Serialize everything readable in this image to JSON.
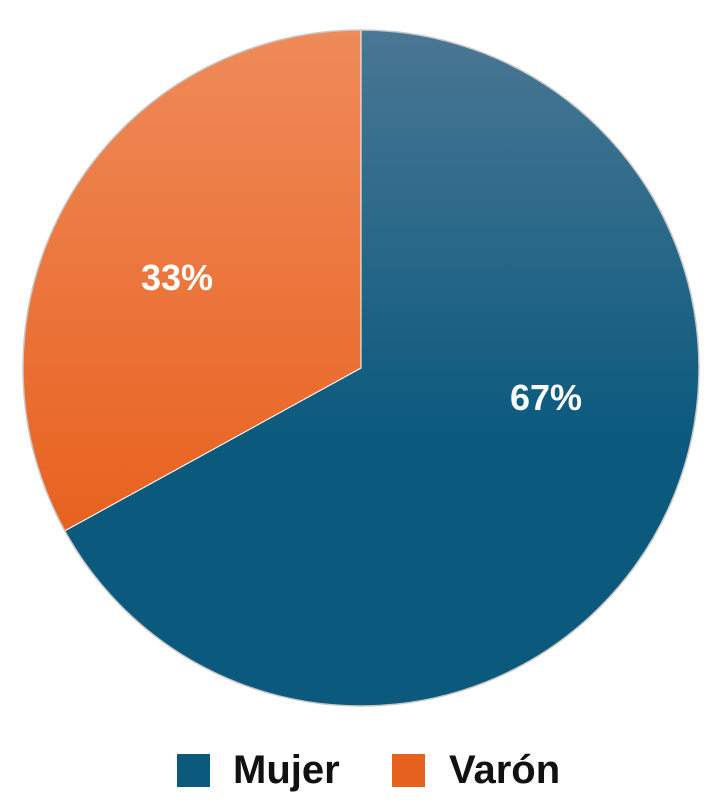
{
  "chart_data": {
    "type": "pie",
    "title": "",
    "start": "top",
    "direction": "clockwise",
    "slices": [
      {
        "name": "Mujer",
        "value": 67,
        "label": "67%",
        "color": "#0b5a7e",
        "color_top": "#4a7794"
      },
      {
        "name": "Varón",
        "value": 33,
        "label": "33%",
        "color": "#e8621f",
        "color_top": "#ef8a5a"
      }
    ],
    "legend": {
      "placement": "bottom",
      "entries": [
        "Mujer",
        "Varón"
      ]
    }
  }
}
